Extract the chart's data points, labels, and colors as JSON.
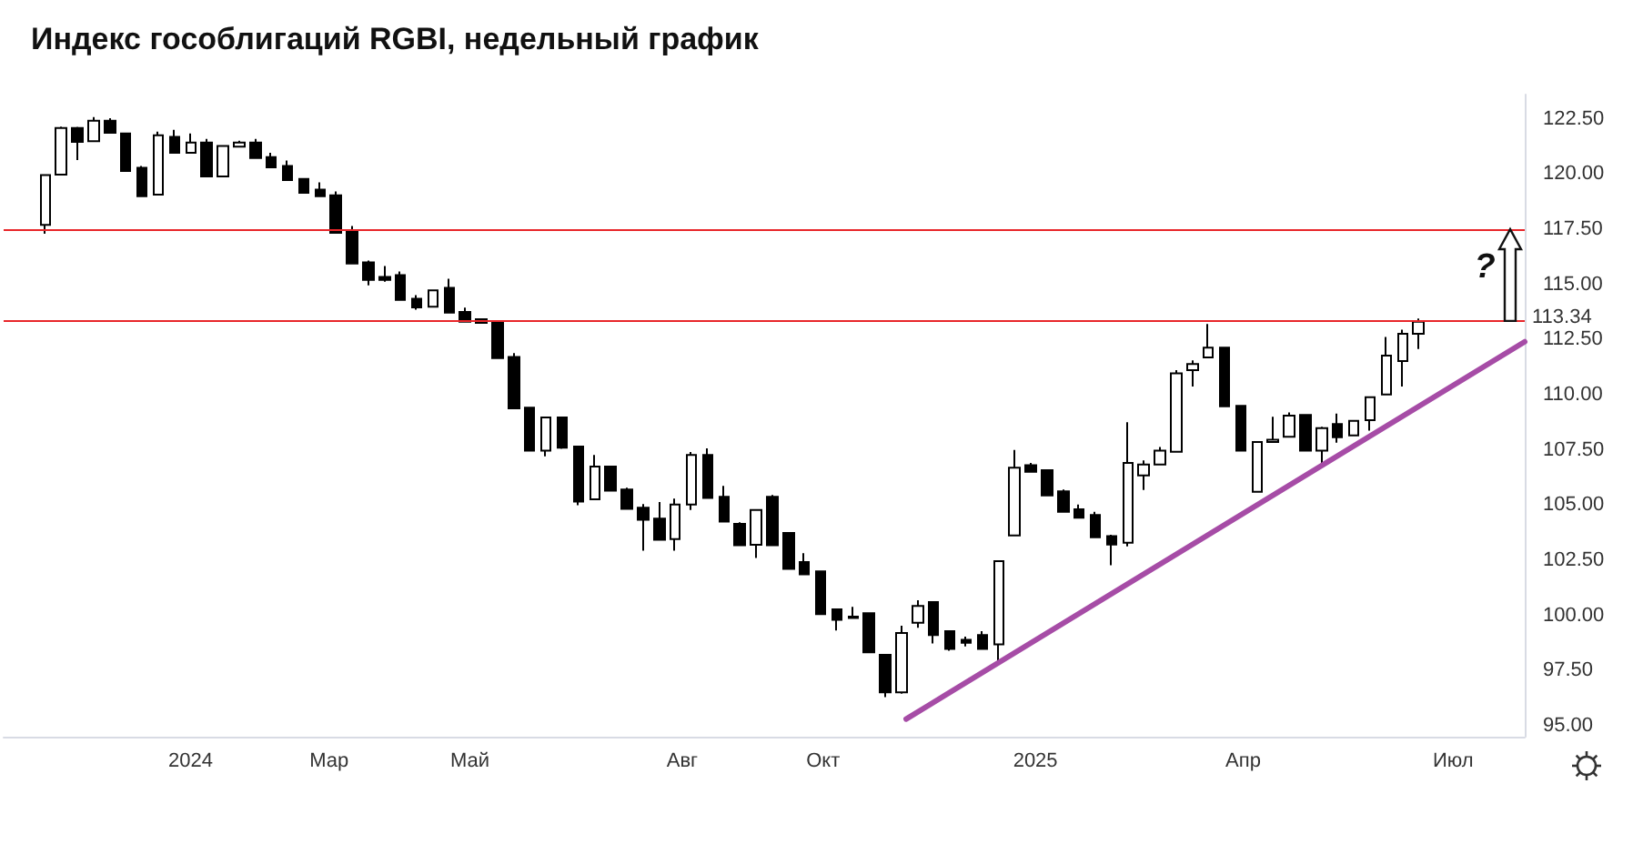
{
  "chart_data": {
    "type": "candlestick",
    "title": "Индекс гособлигаций RGBI, недельный график",
    "x": [
      "2023-10-30",
      "2023-11-06",
      "2023-11-13",
      "2023-11-20",
      "2023-11-27",
      "2023-12-04",
      "2023-12-11",
      "2023-12-18",
      "2023-12-25",
      "2024-01-01",
      "2024-01-08",
      "2024-01-15",
      "2024-01-22",
      "2024-01-29",
      "2024-02-05",
      "2024-02-12",
      "2024-02-19",
      "2024-02-26",
      "2024-03-04",
      "2024-03-11",
      "2024-03-18",
      "2024-03-25",
      "2024-04-01",
      "2024-04-08",
      "2024-04-15",
      "2024-04-22",
      "2024-04-29",
      "2024-05-06",
      "2024-05-13",
      "2024-05-20",
      "2024-05-27",
      "2024-06-03",
      "2024-06-10",
      "2024-06-17",
      "2024-06-24",
      "2024-07-01",
      "2024-07-08",
      "2024-07-15",
      "2024-07-22",
      "2024-07-29",
      "2024-08-05",
      "2024-08-12",
      "2024-08-19",
      "2024-08-26",
      "2024-09-02",
      "2024-09-09",
      "2024-09-16",
      "2024-09-23",
      "2024-09-30",
      "2024-10-07",
      "2024-10-14",
      "2024-10-21",
      "2024-10-28",
      "2024-11-04",
      "2024-11-11",
      "2024-11-18",
      "2024-11-25",
      "2024-12-02",
      "2024-12-09",
      "2024-12-16",
      "2024-12-23",
      "2024-12-30",
      "2025-01-06",
      "2025-01-13",
      "2025-01-20",
      "2025-01-27",
      "2025-02-03",
      "2025-02-10",
      "2025-02-17",
      "2025-02-24",
      "2025-03-03",
      "2025-03-10",
      "2025-03-17",
      "2025-03-24",
      "2025-03-31",
      "2025-04-07",
      "2025-04-14",
      "2025-04-21",
      "2025-04-28",
      "2025-05-05",
      "2025-05-12",
      "2025-05-19",
      "2025-05-26",
      "2025-06-02",
      "2025-06-09",
      "2025-06-16"
    ],
    "series": [
      {
        "color": "#000000",
        "ohlc": [
          [
            117.7,
            119.95,
            117.29,
            119.95
          ],
          [
            119.97,
            122.15,
            119.97,
            122.09
          ],
          [
            122.09,
            122.14,
            120.63,
            121.46
          ],
          [
            121.49,
            122.58,
            121.49,
            122.42
          ],
          [
            122.42,
            122.53,
            121.87,
            121.87
          ],
          [
            121.84,
            121.84,
            120.14,
            120.14
          ],
          [
            120.28,
            120.36,
            118.99,
            118.99
          ],
          [
            119.07,
            121.92,
            119.07,
            121.76
          ],
          [
            121.68,
            122.0,
            120.96,
            120.96
          ],
          [
            120.96,
            121.84,
            120.96,
            121.43
          ],
          [
            121.43,
            121.59,
            119.89,
            119.89
          ],
          [
            119.89,
            121.3,
            119.89,
            121.27
          ],
          [
            121.24,
            121.51,
            121.24,
            121.43
          ],
          [
            121.43,
            121.59,
            120.72,
            120.72
          ],
          [
            120.77,
            120.96,
            120.3,
            120.3
          ],
          [
            120.36,
            120.61,
            119.73,
            119.73
          ],
          [
            119.78,
            119.78,
            119.15,
            119.15
          ],
          [
            119.29,
            119.62,
            118.99,
            118.99
          ],
          [
            119.04,
            119.21,
            117.34,
            117.34
          ],
          [
            117.45,
            117.64,
            115.94,
            115.94
          ],
          [
            116.0,
            116.08,
            114.95,
            115.2
          ],
          [
            115.34,
            115.83,
            115.12,
            115.2
          ],
          [
            115.42,
            115.58,
            114.29,
            114.29
          ],
          [
            114.35,
            114.51,
            113.85,
            113.96
          ],
          [
            113.99,
            114.73,
            113.99,
            114.73
          ],
          [
            114.84,
            115.25,
            113.72,
            113.72
          ],
          [
            113.75,
            113.94,
            113.31,
            113.31
          ],
          [
            113.42,
            113.42,
            113.25,
            113.25
          ],
          [
            113.25,
            113.36,
            111.66,
            111.66
          ],
          [
            111.71,
            111.88,
            109.38,
            109.38
          ],
          [
            109.41,
            109.41,
            107.46,
            107.46
          ],
          [
            107.46,
            108.97,
            107.21,
            108.97
          ],
          [
            108.97,
            108.97,
            107.55,
            107.6
          ],
          [
            107.65,
            107.65,
            104.99,
            105.15
          ],
          [
            105.26,
            107.27,
            105.26,
            106.74
          ],
          [
            106.74,
            106.74,
            105.65,
            105.65
          ],
          [
            105.7,
            105.78,
            104.82,
            104.82
          ],
          [
            104.88,
            105.04,
            102.93,
            104.33
          ],
          [
            104.38,
            105.13,
            103.42,
            103.42
          ],
          [
            103.45,
            105.29,
            102.93,
            105.02
          ],
          [
            105.02,
            107.4,
            104.77,
            107.27
          ],
          [
            107.27,
            107.57,
            105.32,
            105.32
          ],
          [
            105.37,
            105.87,
            104.25,
            104.25
          ],
          [
            104.14,
            104.22,
            103.18,
            103.18
          ],
          [
            103.2,
            104.77,
            102.6,
            104.77
          ],
          [
            105.37,
            105.45,
            103.18,
            103.18
          ],
          [
            103.73,
            103.73,
            102.1,
            102.1
          ],
          [
            102.41,
            102.82,
            101.86,
            101.86
          ],
          [
            101.99,
            101.99,
            100.05,
            100.05
          ],
          [
            100.27,
            100.27,
            99.31,
            99.8
          ],
          [
            99.94,
            100.38,
            99.88,
            99.88
          ],
          [
            100.1,
            100.1,
            98.32,
            98.32
          ],
          [
            98.21,
            98.21,
            96.29,
            96.51
          ],
          [
            96.51,
            99.53,
            96.45,
            99.2
          ],
          [
            99.66,
            100.68,
            99.44,
            100.43
          ],
          [
            100.6,
            100.6,
            98.73,
            99.11
          ],
          [
            99.28,
            99.28,
            98.4,
            98.48
          ],
          [
            98.89,
            99.03,
            98.59,
            98.76
          ],
          [
            99.11,
            99.28,
            98.48,
            98.48
          ],
          [
            98.68,
            102.46,
            97.93,
            102.46
          ],
          [
            103.62,
            107.49,
            103.62,
            106.69
          ],
          [
            106.8,
            106.91,
            106.5,
            106.5
          ],
          [
            106.58,
            106.58,
            105.43,
            105.43
          ],
          [
            105.62,
            105.7,
            104.69,
            104.69
          ],
          [
            104.8,
            105.02,
            104.42,
            104.42
          ],
          [
            104.55,
            104.69,
            103.54,
            103.54
          ],
          [
            103.59,
            103.65,
            102.27,
            103.21
          ],
          [
            103.29,
            108.75,
            103.13,
            106.91
          ],
          [
            106.34,
            107.02,
            105.68,
            106.83
          ],
          [
            106.83,
            107.63,
            106.83,
            107.46
          ],
          [
            107.41,
            111.11,
            107.41,
            110.97
          ],
          [
            111.11,
            111.55,
            110.37,
            111.39
          ],
          [
            111.69,
            113.2,
            111.69,
            112.13
          ],
          [
            112.13,
            112.13,
            109.47,
            109.47
          ],
          [
            109.49,
            109.49,
            107.46,
            107.46
          ],
          [
            105.6,
            107.85,
            105.6,
            107.85
          ],
          [
            107.85,
            109.0,
            107.85,
            107.96
          ],
          [
            108.09,
            109.19,
            108.09,
            109.05
          ],
          [
            109.08,
            109.08,
            107.46,
            107.46
          ],
          [
            107.46,
            108.54,
            106.8,
            108.48
          ],
          [
            108.67,
            109.14,
            107.82,
            108.07
          ],
          [
            108.15,
            108.81,
            108.15,
            108.81
          ],
          [
            108.84,
            109.88,
            108.37,
            109.88
          ],
          [
            110.01,
            112.62,
            110.01,
            111.77
          ],
          [
            111.52,
            112.95,
            110.37,
            112.76
          ],
          [
            112.76,
            113.45,
            112.07,
            113.31
          ]
        ]
      },
      {
        "type": "line",
        "color": "#a64ca6",
        "x": [
          "2024-11-06",
          "2025-08-01"
        ],
        "values": [
          95.3,
          112.4
        ]
      }
    ],
    "xlim": [
      "2023-10-12",
      "2025-08-01"
    ],
    "xticks": [
      {
        "value": "2024-01-01",
        "label": "2024"
      },
      {
        "value": "2024-03-01",
        "label": "Мар"
      },
      {
        "value": "2024-05-01",
        "label": "Май"
      },
      {
        "value": "2024-08-01",
        "label": "Авг"
      },
      {
        "value": "2024-10-01",
        "label": "Окт"
      },
      {
        "value": "2025-01-01",
        "label": "2025"
      },
      {
        "value": "2025-04-01",
        "label": "Апр"
      },
      {
        "value": "2025-07-01",
        "label": "Июл"
      }
    ],
    "ylim": [
      94.5,
      123.6
    ],
    "yticks": [
      {
        "value": 95,
        "label": "95.00"
      },
      {
        "value": 97.5,
        "label": "97.50"
      },
      {
        "value": 100,
        "label": "100.00"
      },
      {
        "value": 102.5,
        "label": "102.50"
      },
      {
        "value": 105,
        "label": "105.00"
      },
      {
        "value": 107.5,
        "label": "107.50"
      },
      {
        "value": 110,
        "label": "110.00"
      },
      {
        "value": 112.5,
        "label": "112.50"
      },
      {
        "value": 115,
        "label": "115.00"
      },
      {
        "value": 117.5,
        "label": "117.50"
      },
      {
        "value": 120,
        "label": "120.00"
      },
      {
        "value": 122.5,
        "label": "122.50"
      }
    ],
    "ref_lines": [
      {
        "axis": "y",
        "value": 117.5,
        "color": "#e8262a"
      },
      {
        "axis": "y",
        "value": 113.34,
        "label": "113.34",
        "color": "#e8262a"
      }
    ],
    "annotations": [
      "?"
    ],
    "grid": false
  }
}
